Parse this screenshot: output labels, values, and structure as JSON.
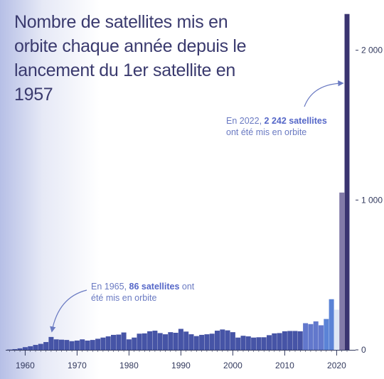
{
  "title": "Nombre de satellites mis en orbite chaque année depuis le lancement du 1er satellite en 1957",
  "annotations": {
    "a2022": {
      "prefix": "En 2022, ",
      "bold": "2 242 satellites",
      "suffix": " ont été mis en orbite"
    },
    "a1965": {
      "prefix": "En 1965, ",
      "bold": "86 satellites",
      "suffix": " ont été mis en orbite"
    }
  },
  "colors": {
    "bar_main": "#4654a6",
    "bar_2014_2017": "#6278cc",
    "bar_2018_2019": "#5b83d6",
    "bar_2020": "#dfe7f5",
    "bar_2021": "#827aa8",
    "bar_2022": "#3a3470",
    "axis": "#333a5e",
    "annotation": "#6a7ac2"
  },
  "chart_data": {
    "type": "bar",
    "title": "Nombre de satellites mis en orbite chaque année depuis le lancement du 1er satellite en 1957",
    "x": [
      1957,
      1958,
      1959,
      1960,
      1961,
      1962,
      1963,
      1964,
      1965,
      1966,
      1967,
      1968,
      1969,
      1970,
      1971,
      1972,
      1973,
      1974,
      1975,
      1976,
      1977,
      1978,
      1979,
      1980,
      1981,
      1982,
      1983,
      1984,
      1985,
      1986,
      1987,
      1988,
      1989,
      1990,
      1991,
      1992,
      1993,
      1994,
      1995,
      1996,
      1997,
      1998,
      1999,
      2000,
      2001,
      2002,
      2003,
      2004,
      2005,
      2006,
      2007,
      2008,
      2009,
      2010,
      2011,
      2012,
      2013,
      2014,
      2015,
      2016,
      2017,
      2018,
      2019,
      2020,
      2021,
      2022
    ],
    "values": [
      2,
      5,
      10,
      18,
      24,
      33,
      40,
      52,
      86,
      70,
      68,
      66,
      58,
      62,
      70,
      62,
      66,
      74,
      82,
      90,
      100,
      102,
      116,
      70,
      82,
      108,
      110,
      124,
      128,
      112,
      104,
      118,
      114,
      140,
      122,
      104,
      92,
      100,
      104,
      108,
      128,
      136,
      130,
      118,
      82,
      94,
      90,
      82,
      84,
      84,
      98,
      110,
      112,
      124,
      126,
      126,
      124,
      178,
      172,
      190,
      164,
      206,
      338,
      268,
      1050,
      2242
    ],
    "xticks": [
      "1960",
      "1970",
      "1980",
      "1990",
      "2000",
      "2010",
      "2020"
    ],
    "yticks": [
      "0",
      "1 000",
      "2 000"
    ],
    "ylim": [
      0,
      2250
    ],
    "xlabel": "",
    "ylabel": "",
    "grid": false,
    "y_axis_side": "right"
  }
}
